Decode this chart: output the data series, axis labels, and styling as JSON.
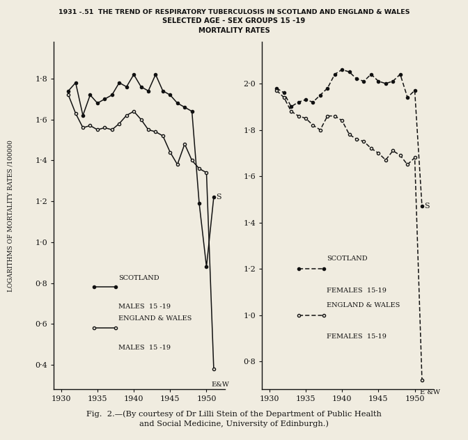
{
  "title_line1": "1931 -.51  THE TREND OF RESPIRATORY TUBERCULOSIS IN SCOTLAND AND ENGLAND & WALES",
  "title_line2": "SELECTED AGE - SEX GROUPS 15 -19",
  "title_line3": "MORTALITY RATES",
  "caption": "Fig.  2.—(By courtesy of Dr Lilli Stein of the Department of Public Health\nand Social Medicine, University of Edinburgh.)",
  "ylabel": "LOGARITHMS OF MORTALITY RATES /100000",
  "left_scotland_males_x": [
    1931,
    1932,
    1933,
    1934,
    1935,
    1936,
    1937,
    1938,
    1939,
    1940,
    1941,
    1942,
    1943,
    1944,
    1945,
    1946,
    1947,
    1948,
    1949,
    1950,
    1951
  ],
  "left_scotland_males_y": [
    1.74,
    1.78,
    1.62,
    1.72,
    1.68,
    1.7,
    1.72,
    1.78,
    1.76,
    1.82,
    1.76,
    1.74,
    1.82,
    1.74,
    1.72,
    1.68,
    1.66,
    1.64,
    1.19,
    0.88,
    1.22
  ],
  "left_ew_males_x": [
    1931,
    1932,
    1933,
    1934,
    1935,
    1936,
    1937,
    1938,
    1939,
    1940,
    1941,
    1942,
    1943,
    1944,
    1945,
    1946,
    1947,
    1948,
    1949,
    1950,
    1951
  ],
  "left_ew_males_y": [
    1.72,
    1.63,
    1.56,
    1.57,
    1.55,
    1.56,
    1.55,
    1.58,
    1.62,
    1.64,
    1.6,
    1.55,
    1.54,
    1.52,
    1.44,
    1.38,
    1.48,
    1.4,
    1.36,
    1.34,
    0.38
  ],
  "right_scotland_females_x": [
    1931,
    1932,
    1933,
    1934,
    1935,
    1936,
    1937,
    1938,
    1939,
    1940,
    1941,
    1942,
    1943,
    1944,
    1945,
    1946,
    1947,
    1948,
    1949,
    1950,
    1951
  ],
  "right_scotland_females_y": [
    1.98,
    1.96,
    1.9,
    1.92,
    1.93,
    1.92,
    1.95,
    1.98,
    2.04,
    2.06,
    2.05,
    2.02,
    2.01,
    2.04,
    2.01,
    2.0,
    2.01,
    2.04,
    1.94,
    1.97,
    1.47
  ],
  "right_ew_females_x": [
    1931,
    1932,
    1933,
    1934,
    1935,
    1936,
    1937,
    1938,
    1939,
    1940,
    1941,
    1942,
    1943,
    1944,
    1945,
    1946,
    1947,
    1948,
    1949,
    1950,
    1951
  ],
  "right_ew_females_y": [
    1.97,
    1.94,
    1.88,
    1.86,
    1.85,
    1.82,
    1.8,
    1.86,
    1.86,
    1.84,
    1.78,
    1.76,
    1.75,
    1.72,
    1.7,
    1.67,
    1.71,
    1.69,
    1.65,
    1.68,
    0.72
  ],
  "left_ylim": [
    0.28,
    1.98
  ],
  "right_ylim": [
    0.68,
    2.18
  ],
  "left_yticks": [
    0.4,
    0.6,
    0.8,
    1.0,
    1.2,
    1.4,
    1.6,
    1.8
  ],
  "right_yticks": [
    0.8,
    1.0,
    1.2,
    1.4,
    1.6,
    1.8,
    2.0
  ],
  "xticks": [
    1930,
    1935,
    1940,
    1945,
    1950
  ],
  "xlim": [
    1929.0,
    1952.5
  ],
  "bg_color": "#f0ece0",
  "line_color": "#111111"
}
